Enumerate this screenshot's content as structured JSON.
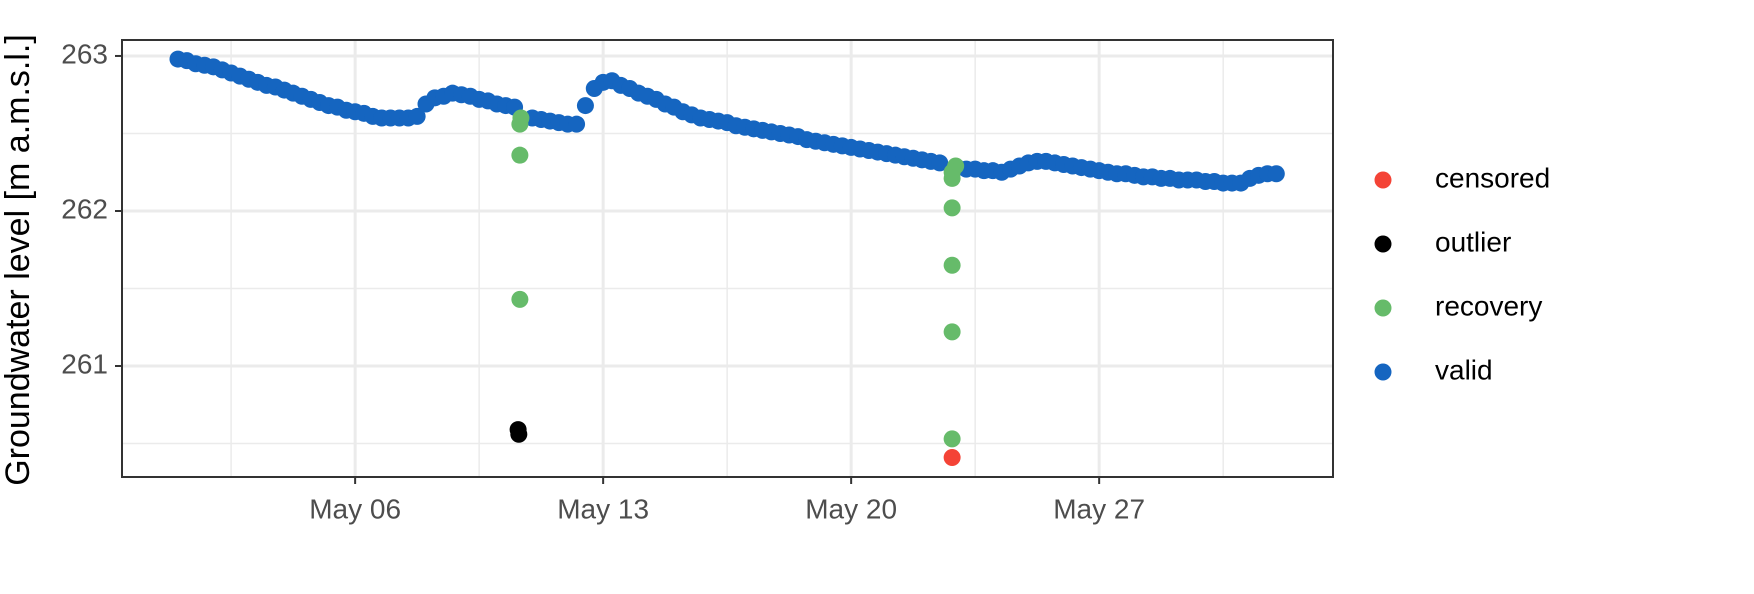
{
  "chart_data": {
    "type": "scatter",
    "y_label": "Groundwater level [m a.m.s.l.]",
    "xlim": [
      -0.58,
      33.6
    ],
    "xticks": [
      {
        "value": 6,
        "label": "May 06"
      },
      {
        "value": 13,
        "label": "May 13"
      },
      {
        "value": 20,
        "label": "May 20"
      },
      {
        "value": 27,
        "label": "May 27"
      }
    ],
    "ylim": [
      260.284,
      263.103
    ],
    "yticks": [
      261,
      262,
      263
    ],
    "grid": true,
    "legend": "right",
    "series": [
      {
        "name": "censored",
        "color": "#f44336",
        "x": [
          22.85
        ],
        "values": [
          260.41
        ]
      },
      {
        "name": "outlier",
        "color": "#000000",
        "x": [
          10.6,
          10.62
        ],
        "values": [
          260.59,
          260.56
        ]
      },
      {
        "name": "recovery",
        "color": "#66bb6a",
        "x": [
          10.68,
          10.65,
          10.65,
          10.65,
          22.95,
          22.85,
          22.85,
          22.85,
          22.85,
          22.85,
          22.85
        ],
        "values": [
          262.6,
          262.56,
          262.36,
          261.43,
          262.29,
          262.25,
          262.21,
          262.02,
          261.65,
          261.22,
          260.53
        ]
      },
      {
        "name": "valid",
        "color": "#1565c0",
        "x": [
          1.0,
          1.25,
          1.5,
          1.75,
          2.0,
          2.25,
          2.5,
          2.75,
          3.0,
          3.25,
          3.5,
          3.75,
          4.0,
          4.25,
          4.5,
          4.75,
          5.0,
          5.25,
          5.5,
          5.75,
          6.0,
          6.25,
          6.5,
          6.75,
          7.0,
          7.25,
          7.5,
          7.75,
          8.0,
          8.25,
          8.5,
          8.75,
          9.0,
          9.25,
          9.5,
          9.75,
          10.0,
          10.25,
          10.5,
          11.0,
          11.25,
          11.5,
          11.75,
          12.0,
          12.25,
          12.5,
          12.75,
          13.0,
          13.25,
          13.5,
          13.75,
          14.0,
          14.25,
          14.5,
          14.75,
          15.0,
          15.25,
          15.5,
          15.75,
          16.0,
          16.25,
          16.5,
          16.75,
          17.0,
          17.25,
          17.5,
          17.75,
          18.0,
          18.25,
          18.5,
          18.75,
          19.0,
          19.25,
          19.5,
          19.75,
          20.0,
          20.25,
          20.5,
          20.75,
          21.0,
          21.25,
          21.5,
          21.75,
          22.0,
          22.25,
          22.5,
          23.0,
          23.25,
          23.5,
          23.75,
          24.0,
          24.25,
          24.5,
          24.75,
          25.0,
          25.25,
          25.5,
          25.75,
          26.0,
          26.25,
          26.5,
          26.75,
          27.0,
          27.25,
          27.5,
          27.75,
          28.0,
          28.25,
          28.5,
          28.75,
          29.0,
          29.25,
          29.5,
          29.75,
          30.0,
          30.25,
          30.5,
          30.75,
          31.0,
          31.25,
          31.5,
          31.75,
          32.0
        ],
        "values": [
          262.98,
          262.97,
          262.95,
          262.94,
          262.93,
          262.91,
          262.89,
          262.87,
          262.85,
          262.83,
          262.81,
          262.8,
          262.78,
          262.76,
          262.74,
          262.72,
          262.7,
          262.68,
          262.67,
          262.65,
          262.64,
          262.63,
          262.61,
          262.6,
          262.6,
          262.6,
          262.6,
          262.61,
          262.69,
          262.73,
          262.74,
          262.76,
          262.75,
          262.74,
          262.72,
          262.71,
          262.69,
          262.68,
          262.67,
          262.6,
          262.59,
          262.58,
          262.57,
          262.56,
          262.56,
          262.68,
          262.79,
          262.83,
          262.84,
          262.81,
          262.79,
          262.76,
          262.74,
          262.72,
          262.69,
          262.67,
          262.64,
          262.62,
          262.6,
          262.59,
          262.58,
          262.57,
          262.55,
          262.54,
          262.53,
          262.52,
          262.51,
          262.5,
          262.49,
          262.48,
          262.46,
          262.45,
          262.44,
          262.43,
          262.42,
          262.41,
          262.4,
          262.39,
          262.38,
          262.37,
          262.36,
          262.35,
          262.34,
          262.33,
          262.32,
          262.31,
          262.28,
          262.27,
          262.27,
          262.26,
          262.26,
          262.25,
          262.27,
          262.29,
          262.31,
          262.32,
          262.32,
          262.31,
          262.3,
          262.29,
          262.28,
          262.27,
          262.26,
          262.25,
          262.24,
          262.24,
          262.23,
          262.22,
          262.22,
          262.21,
          262.21,
          262.2,
          262.2,
          262.2,
          262.19,
          262.19,
          262.18,
          262.18,
          262.18,
          262.21,
          262.23,
          262.24,
          262.24
        ]
      }
    ]
  }
}
